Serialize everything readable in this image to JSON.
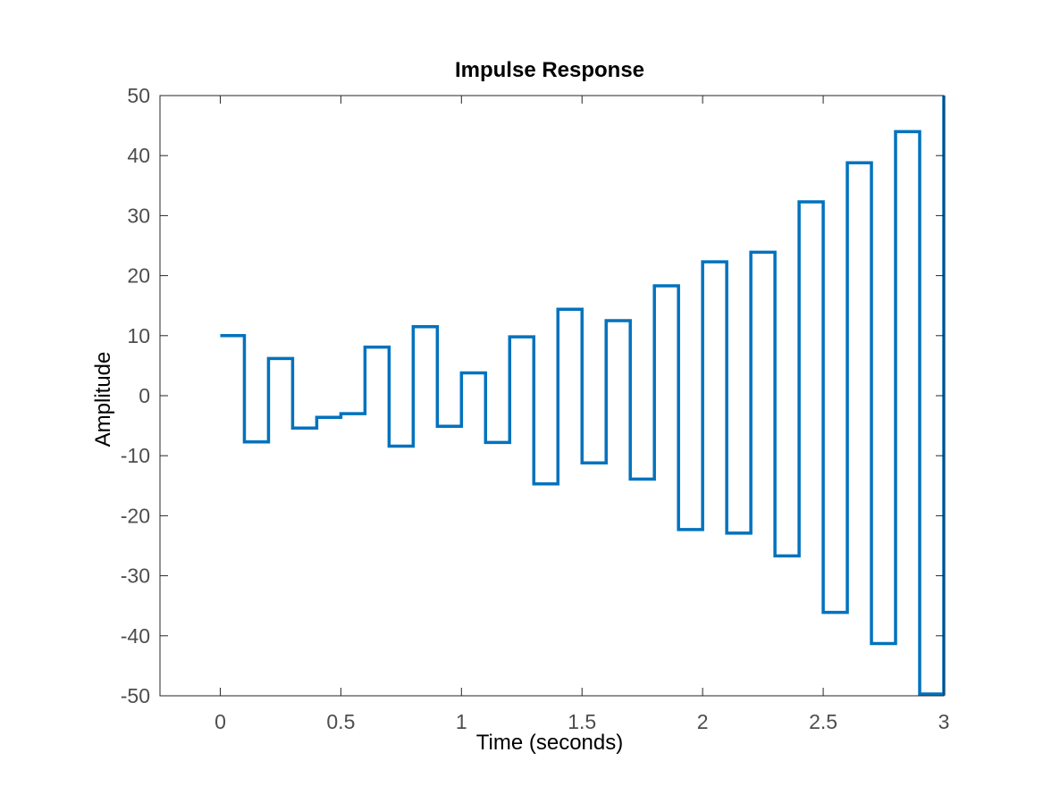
{
  "chart_data": {
    "type": "line",
    "step": true,
    "title": "Impulse Response",
    "xlabel": "Time (seconds)",
    "ylabel": "Amplitude",
    "xlim": [
      -0.25,
      3
    ],
    "ylim": [
      -50,
      50
    ],
    "grid": false,
    "x_ticks": [
      0,
      0.5,
      1,
      1.5,
      2,
      2.5,
      3
    ],
    "x_tick_labels": [
      "0",
      "0.5",
      "1",
      "1.5",
      "2",
      "2.5",
      "3"
    ],
    "y_ticks": [
      -50,
      -40,
      -30,
      -20,
      -10,
      0,
      10,
      20,
      30,
      40,
      50
    ],
    "y_tick_labels": [
      "-50",
      "-40",
      "-30",
      "-20",
      "-10",
      "0",
      "10",
      "20",
      "30",
      "40",
      "50"
    ],
    "series": [
      {
        "color": "#0072BD",
        "x": [
          0,
          0.1,
          0.2,
          0.3,
          0.4,
          0.5,
          0.6,
          0.7,
          0.8,
          0.9,
          1.0,
          1.1,
          1.2,
          1.3,
          1.4,
          1.5,
          1.6,
          1.7,
          1.8,
          1.9,
          2.0,
          2.1,
          2.2,
          2.3,
          2.4,
          2.5,
          2.6,
          2.7,
          2.8,
          2.9,
          3.0
        ],
        "values": [
          10,
          -7.7,
          6.2,
          -5.4,
          -3.6,
          -3,
          8.1,
          -8.4,
          11.5,
          -5.1,
          3.8,
          -7.8,
          9.8,
          -14.7,
          14.4,
          -11.2,
          12.5,
          -13.9,
          18.3,
          -22.3,
          22.3,
          -22.9,
          23.9,
          -26.7,
          32.3,
          -36.1,
          38.8,
          -41.3,
          44,
          -49.7,
          50
        ]
      }
    ]
  }
}
